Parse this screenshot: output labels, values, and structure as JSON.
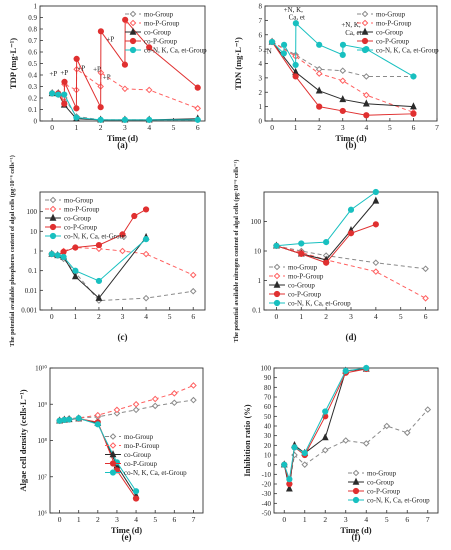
{
  "figure": {
    "panels": [
      "(a)",
      "(b)",
      "(c)",
      "(d)",
      "(e)",
      "(f)"
    ]
  },
  "colors": {
    "mo": "#8a8a8a",
    "moP": "#ff6060",
    "co": "#2b2b2b",
    "coP": "#e03030",
    "coN": "#18c0c0",
    "axis": "#333333"
  },
  "chart_data": [
    {
      "panel": "(a)",
      "type": "line",
      "ylabel": "TDP (mg·L⁻¹)",
      "xlabel": "Time (d)",
      "xlim": [
        -0.5,
        6.3
      ],
      "ylim": [
        0,
        1.0
      ],
      "xticks": [
        0,
        1,
        2,
        3,
        4,
        5,
        6
      ],
      "yticks": [
        0.0,
        0.1,
        0.2,
        0.3,
        0.4,
        0.5,
        0.6,
        0.7,
        0.8,
        0.9,
        1.0
      ],
      "legend": {
        "position": "top-right",
        "entries": [
          {
            "key": "mo",
            "label": "mo-Group"
          },
          {
            "key": "moP",
            "label": "mo-P-Group"
          },
          {
            "key": "co",
            "label": "co-Group"
          },
          {
            "key": "coP",
            "label": "co-P-Group"
          },
          {
            "key": "coN",
            "label": "co-N, K, Ca, et-Group"
          }
        ]
      },
      "series": [
        {
          "key": "mo",
          "name": "mo-Group",
          "x": [
            0,
            0.25,
            0.5,
            1,
            2,
            4,
            6
          ],
          "y": [
            0.24,
            0.23,
            0.2,
            0.04,
            0.01,
            0.01,
            0.01
          ]
        },
        {
          "key": "moP",
          "name": "mo-P-Group",
          "x": [
            0,
            0.25,
            0.5,
            0.51,
            1,
            1.01,
            2,
            2.01,
            3,
            4,
            6
          ],
          "y": [
            0.24,
            0.23,
            0.2,
            0.32,
            0.27,
            0.45,
            0.3,
            0.42,
            0.28,
            0.27,
            0.11
          ]
        },
        {
          "key": "co",
          "name": "co-Group",
          "x": [
            0,
            0.25,
            0.5,
            1,
            2,
            3,
            4,
            6
          ],
          "y": [
            0.24,
            0.24,
            0.14,
            0.02,
            0.01,
            0.01,
            0.01,
            0.02
          ]
        },
        {
          "key": "coP",
          "name": "co-P-Group",
          "x": [
            0,
            0.25,
            0.5,
            0.51,
            1,
            1.01,
            2,
            2.01,
            3,
            3.01,
            4,
            6
          ],
          "y": [
            0.24,
            0.24,
            0.15,
            0.34,
            0.11,
            0.54,
            0.12,
            0.78,
            0.49,
            0.88,
            0.64,
            0.29
          ]
        },
        {
          "key": "coN",
          "name": "co-N, K, Ca, et-Group",
          "x": [
            0,
            0.25,
            0.5,
            1,
            2,
            3,
            4,
            6
          ],
          "y": [
            0.24,
            0.23,
            0.23,
            0.03,
            0.01,
            0.01,
            0.01,
            0.01
          ]
        }
      ],
      "annotations": [
        {
          "text": "+P",
          "x": 0.05,
          "y": 0.39
        },
        {
          "text": "+P",
          "x": 0.5,
          "y": 0.4
        },
        {
          "text": "+P",
          "x": 1.2,
          "y": 0.44
        },
        {
          "text": "+P",
          "x": 1.85,
          "y": 0.43
        },
        {
          "text": "+P",
          "x": 2.4,
          "y": 0.69
        },
        {
          "text": "+P",
          "x": 2.25,
          "y": 0.36
        }
      ]
    },
    {
      "panel": "(b)",
      "type": "line",
      "ylabel": "TDN (mg·L⁻¹)",
      "xlabel": "Time (d)",
      "xlim": [
        -0.3,
        7
      ],
      "ylim": [
        0,
        8
      ],
      "xticks": [
        0,
        1,
        2,
        3,
        4,
        5,
        6,
        7
      ],
      "yticks": [
        0,
        1,
        2,
        3,
        4,
        5,
        6,
        7,
        8
      ],
      "legend": {
        "position": "top-right",
        "entries": [
          {
            "key": "mo",
            "label": "mo-Group"
          },
          {
            "key": "moP",
            "label": "mo-P-Group"
          },
          {
            "key": "co",
            "label": "co-Group"
          },
          {
            "key": "coP",
            "label": "co-P-Group"
          },
          {
            "key": "coN",
            "label": "co-N, K, Ca, et-Group"
          }
        ]
      },
      "series": [
        {
          "key": "mo",
          "name": "mo-Group",
          "x": [
            0,
            1,
            2,
            3,
            4,
            6
          ],
          "y": [
            5.5,
            4.6,
            3.6,
            3.5,
            3.1,
            3.1
          ]
        },
        {
          "key": "moP",
          "name": "mo-P-Group",
          "x": [
            0,
            1,
            2,
            3,
            4,
            6
          ],
          "y": [
            5.5,
            4.5,
            3.3,
            2.8,
            1.8,
            0.6
          ]
        },
        {
          "key": "co",
          "name": "co-Group",
          "x": [
            0,
            1,
            2,
            3,
            4,
            6
          ],
          "y": [
            5.5,
            3.4,
            2.1,
            1.5,
            1.2,
            1.0
          ]
        },
        {
          "key": "coP",
          "name": "co-P-Group",
          "x": [
            0,
            1,
            2,
            3,
            4,
            6
          ],
          "y": [
            5.5,
            3.1,
            1.0,
            0.7,
            0.4,
            0.5
          ]
        },
        {
          "key": "coN",
          "name": "co-N, K, Ca, et-Group",
          "x": [
            0,
            0.5,
            0.51,
            1,
            1.01,
            2,
            3,
            3.01,
            4,
            6
          ],
          "y": [
            5.5,
            4.7,
            5.3,
            3.9,
            6.8,
            5.3,
            4.6,
            5.3,
            5.0,
            3.1
          ]
        }
      ],
      "annotations": [
        {
          "text": "+N, K,",
          "x": 0.9,
          "y": 7.6
        },
        {
          "text": "Ca, et",
          "x": 1.05,
          "y": 7.05
        },
        {
          "text": "+N, K,",
          "x": 3.35,
          "y": 6.55
        },
        {
          "text": "Ca, et",
          "x": 3.45,
          "y": 6.0
        },
        {
          "text": "+N",
          "x": -0.2,
          "y": 4.7
        }
      ]
    },
    {
      "panel": "(c)",
      "type": "line",
      "ylabel": "The potential available phosphorus content of algal cells (pg·10⁻⁶ cells⁻¹)",
      "xlabel": "",
      "xlim": [
        -0.5,
        6.5
      ],
      "ylim": [
        0.001,
        1000
      ],
      "yscale": "log",
      "xticks": [
        0,
        1,
        2,
        3,
        4,
        5,
        6
      ],
      "yticks": [
        0.001,
        0.01,
        0.1,
        1,
        10,
        100
      ],
      "ytick_labels": [
        "0.001",
        "0.01",
        "0.1",
        "1",
        "10",
        "100"
      ],
      "legend": {
        "position": "top-left",
        "entries": [
          {
            "key": "mo",
            "label": "mo-Group"
          },
          {
            "key": "moP",
            "label": "mo-P-Group"
          },
          {
            "key": "co",
            "label": "co-Group"
          },
          {
            "key": "coP",
            "label": "co-P-Group"
          },
          {
            "key": "coN",
            "label": "co-N, K, Ca, et-Group"
          }
        ]
      },
      "series": [
        {
          "key": "mo",
          "name": "mo-Group",
          "x": [
            0,
            0.25,
            0.5,
            1,
            2,
            4,
            6
          ],
          "y": [
            0.7,
            0.6,
            0.4,
            0.08,
            0.003,
            0.004,
            0.009
          ]
        },
        {
          "key": "moP",
          "name": "mo-P-Group",
          "x": [
            0,
            0.25,
            0.5,
            1,
            2,
            3,
            4,
            6
          ],
          "y": [
            0.7,
            0.6,
            1.0,
            1.5,
            1.3,
            1.0,
            0.7,
            0.06
          ]
        },
        {
          "key": "co",
          "name": "co-Group",
          "x": [
            0,
            0.25,
            0.5,
            1,
            2,
            4
          ],
          "y": [
            0.7,
            0.6,
            0.5,
            0.05,
            0.004,
            5.0
          ]
        },
        {
          "key": "coP",
          "name": "co-P-Group",
          "x": [
            0,
            0.25,
            0.5,
            1,
            2,
            3,
            3.5,
            4
          ],
          "y": [
            0.7,
            0.6,
            0.9,
            1.5,
            2.0,
            7.0,
            60.0,
            130.0
          ]
        },
        {
          "key": "coN",
          "name": "co-N, K, Ca, et-Group",
          "x": [
            0,
            0.25,
            0.5,
            1,
            2,
            4
          ],
          "y": [
            0.7,
            0.6,
            0.5,
            0.1,
            0.03,
            4.0
          ]
        }
      ]
    },
    {
      "panel": "(d)",
      "type": "line",
      "ylabel": "The potential available nitrogen content of algal cells (pg·10⁻⁶ cells⁻¹)",
      "xlabel": "",
      "xlim": [
        -0.5,
        6.5
      ],
      "ylim": [
        0.1,
        1000
      ],
      "yscale": "log",
      "xticks": [
        0,
        1,
        2,
        3,
        4,
        5,
        6
      ],
      "yticks": [
        0.1,
        1,
        10,
        100
      ],
      "ytick_labels": [
        "0.1",
        "1",
        "10",
        "100"
      ],
      "legend": {
        "position": "bottom-left",
        "entries": [
          {
            "key": "mo",
            "label": "mo-Group"
          },
          {
            "key": "moP",
            "label": "mo-P-Group"
          },
          {
            "key": "co",
            "label": "co-Group"
          },
          {
            "key": "coP",
            "label": "co-P-Group"
          },
          {
            "key": "coN",
            "label": "co-N, K, Ca, et-Group"
          }
        ]
      },
      "series": [
        {
          "key": "mo",
          "name": "mo-Group",
          "x": [
            0,
            1,
            2,
            4,
            6
          ],
          "y": [
            15.0,
            10.0,
            7.0,
            4.0,
            2.5
          ]
        },
        {
          "key": "moP",
          "name": "mo-P-Group",
          "x": [
            0,
            1,
            2,
            4,
            6
          ],
          "y": [
            15.0,
            9.0,
            5.0,
            2.0,
            0.25
          ]
        },
        {
          "key": "co",
          "name": "co-Group",
          "x": [
            0,
            1,
            2,
            3,
            4
          ],
          "y": [
            15.0,
            8.0,
            5.0,
            50.0,
            500.0
          ]
        },
        {
          "key": "coP",
          "name": "co-P-Group",
          "x": [
            0,
            1,
            2,
            3,
            4
          ],
          "y": [
            15.0,
            8.0,
            4.0,
            40.0,
            80.0
          ]
        },
        {
          "key": "coN",
          "name": "co-N, K, Ca, et-Group",
          "x": [
            0,
            1,
            2,
            3,
            4
          ],
          "y": [
            15.0,
            18.0,
            20.0,
            250.0,
            1000.0
          ]
        }
      ]
    },
    {
      "panel": "(e)",
      "type": "line",
      "ylabel": "Algae cell density (cells·L⁻¹)",
      "xlabel": "Time (d)",
      "xlim": [
        -0.5,
        7.5
      ],
      "ylim": [
        1000000,
        10000000000
      ],
      "yscale": "log",
      "xticks": [
        0,
        1,
        2,
        3,
        4,
        5,
        6,
        7
      ],
      "yticks": [
        1000000,
        10000000,
        100000000,
        1000000000,
        10000000000
      ],
      "ytick_labels": [
        "10⁶",
        "10⁷",
        "10⁸",
        "10⁹",
        "10¹⁰"
      ],
      "legend": {
        "position": "right",
        "entries": [
          {
            "key": "mo",
            "label": "mo-Group"
          },
          {
            "key": "moP",
            "label": "mo-P-Group"
          },
          {
            "key": "co",
            "label": "co-Group"
          },
          {
            "key": "coP",
            "label": "co-P-Group"
          },
          {
            "key": "coN",
            "label": "co-N, K, Ca, et-Group"
          }
        ]
      },
      "series": [
        {
          "key": "mo",
          "name": "mo-Group",
          "x": [
            0,
            0.25,
            0.5,
            1,
            2,
            3,
            4,
            5,
            6,
            7
          ],
          "y": [
            350000000,
            380000000,
            400000000,
            420000000,
            450000000,
            560000000,
            700000000,
            900000000,
            1100000000,
            1300000000
          ]
        },
        {
          "key": "moP",
          "name": "mo-P-Group",
          "x": [
            0,
            0.25,
            0.5,
            1,
            2,
            3,
            4,
            5,
            6,
            7
          ],
          "y": [
            350000000,
            380000000,
            400000000,
            420000000,
            500000000,
            700000000,
            1000000000,
            1400000000,
            2000000000,
            3300000000
          ]
        },
        {
          "key": "co",
          "name": "co-Group",
          "x": [
            0,
            0.25,
            0.5,
            1,
            2,
            3,
            4
          ],
          "y": [
            350000000,
            370000000,
            380000000,
            400000000,
            300000000,
            20000000,
            3000000
          ]
        },
        {
          "key": "coP",
          "name": "co-P-Group",
          "x": [
            0,
            0.25,
            0.5,
            1,
            2,
            3,
            4
          ],
          "y": [
            350000000,
            370000000,
            380000000,
            400000000,
            320000000,
            15000000,
            2500000
          ]
        },
        {
          "key": "coN",
          "name": "co-N, K, Ca, et-Group",
          "x": [
            0,
            0.25,
            0.5,
            1,
            2,
            3,
            4
          ],
          "y": [
            350000000,
            370000000,
            380000000,
            410000000,
            280000000,
            25000000,
            4000000
          ]
        }
      ]
    },
    {
      "panel": "(f)",
      "type": "line",
      "ylabel": "Inhibition ratio (%)",
      "xlabel": "Time (d)",
      "xlim": [
        -0.5,
        7.5
      ],
      "ylim": [
        -50,
        100
      ],
      "xticks": [
        0,
        1,
        2,
        3,
        4,
        5,
        6,
        7
      ],
      "yticks": [
        -50,
        -40,
        -30,
        -20,
        -10,
        0,
        10,
        20,
        30,
        40,
        50,
        60,
        70,
        80,
        90,
        100
      ],
      "legend": {
        "position": "bottom-right",
        "entries": [
          {
            "key": "mo",
            "label": "mo-Group"
          },
          {
            "key": "co",
            "label": "co-Group"
          },
          {
            "key": "coP",
            "label": "co-P-Group"
          },
          {
            "key": "coN",
            "label": "co-N, K, Ca, et-Group"
          }
        ]
      },
      "series": [
        {
          "key": "mo",
          "name": "mo-Group",
          "x": [
            0,
            0.25,
            0.5,
            1,
            2,
            3,
            4,
            5,
            6,
            7
          ],
          "y": [
            0,
            -20,
            10,
            0,
            15,
            25,
            22,
            40,
            33,
            57
          ]
        },
        {
          "key": "co",
          "name": "co-Group",
          "x": [
            0,
            0.25,
            0.5,
            1,
            2,
            3,
            4
          ],
          "y": [
            0,
            -25,
            20,
            12,
            28,
            97,
            99
          ]
        },
        {
          "key": "coP",
          "name": "co-P-Group",
          "x": [
            0,
            0.25,
            0.5,
            1,
            2,
            3,
            4
          ],
          "y": [
            0,
            -20,
            18,
            10,
            50,
            95,
            99
          ]
        },
        {
          "key": "coN",
          "name": "co-N, K, Ca, et-Group",
          "x": [
            0,
            0.25,
            0.5,
            1,
            2,
            3,
            4
          ],
          "y": [
            0,
            -15,
            18,
            12,
            55,
            97,
            100
          ]
        }
      ]
    }
  ]
}
